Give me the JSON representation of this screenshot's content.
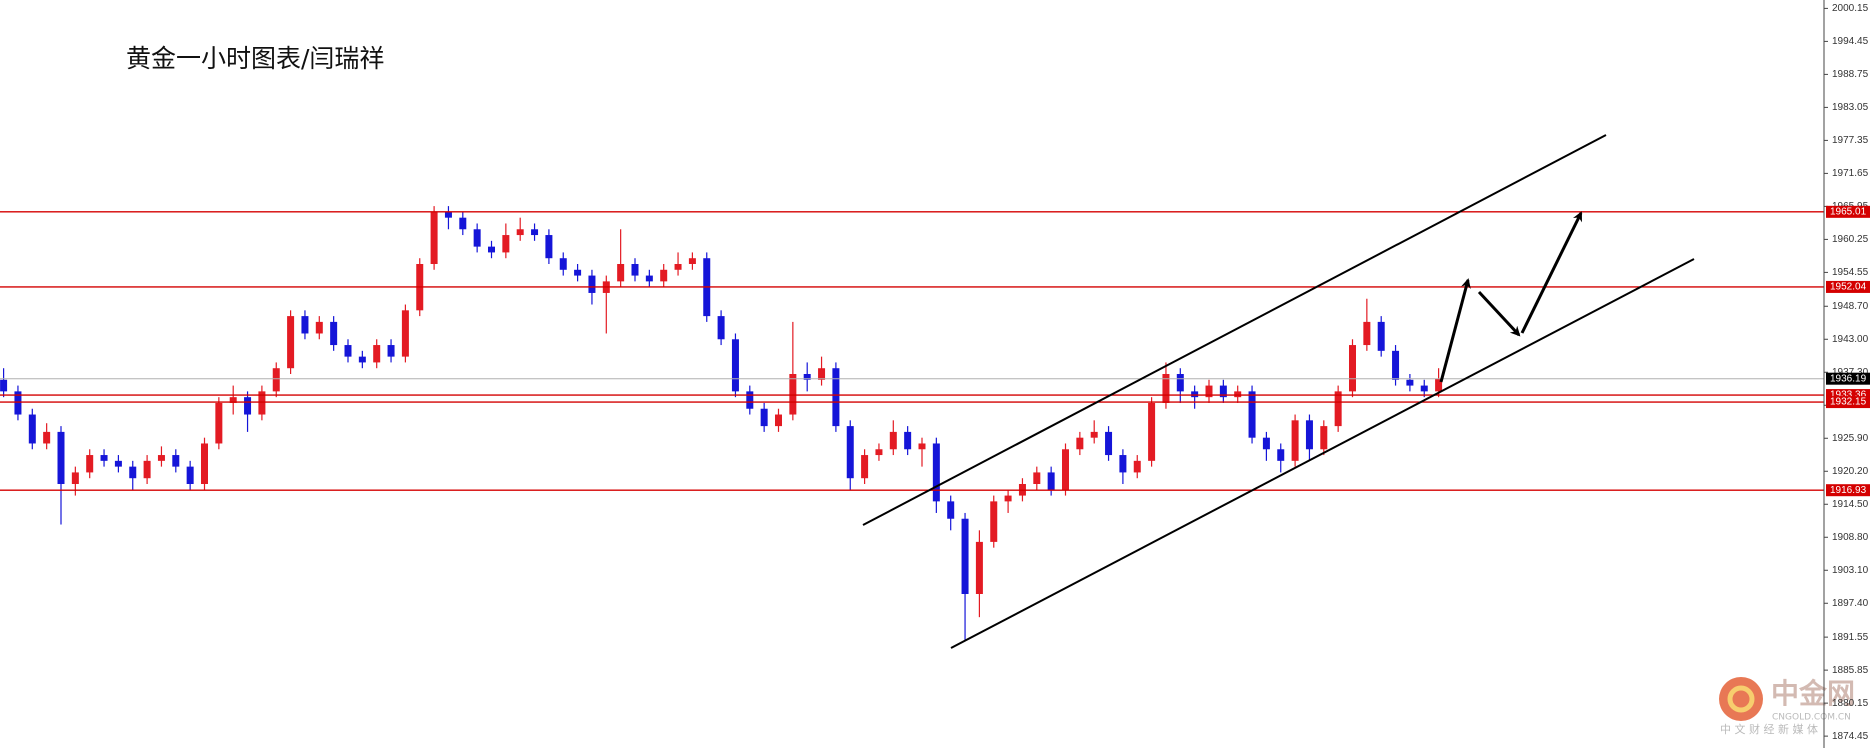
{
  "chart_data": {
    "type": "candlestick",
    "title": "黄金一小时图表/闫瑞祥",
    "up_color": "#e31b23",
    "down_color": "#1515d8",
    "level_color": "#d40000",
    "last_color": "#000000",
    "ylim": [
      1872.4,
      2001.6
    ],
    "yticks": [
      2000.15,
      1994.45,
      1988.75,
      1983.05,
      1977.35,
      1971.65,
      1965.95,
      1960.25,
      1954.55,
      {
        "value": 1948.7,
        "label": "1948.70"
      },
      {
        "value": 1943,
        "label": "1943.00"
      },
      {
        "value": 1937.3,
        "label": "1937.30"
      },
      {
        "value": 1931.6,
        "label": "1931.60"
      },
      {
        "value": 1925.9,
        "label": "1925.90"
      },
      {
        "value": 1920.2,
        "label": "1920.20"
      },
      {
        "value": 1914.5,
        "label": "1914.50"
      },
      {
        "value": 1908.8,
        "label": "1908.80"
      },
      {
        "value": 1903.1,
        "label": "1903.10"
      },
      {
        "value": 1897.4,
        "label": "1897.40"
      },
      1891.55,
      1885.85,
      1880.15,
      1874.45
    ],
    "levels": [
      1965.01,
      1952.04,
      1933.36,
      1932.15,
      1916.93
    ],
    "last_price": 1936.19,
    "ohlc": [
      [
        1936,
        1938,
        1933,
        1934
      ],
      [
        1934,
        1935,
        1929,
        1930
      ],
      [
        1930,
        1931,
        1924,
        1925
      ],
      [
        1925,
        1928.5,
        1924,
        1927
      ],
      [
        1927,
        1928,
        1911,
        1918
      ],
      [
        1918,
        1921,
        1916,
        1920
      ],
      [
        1920,
        1924,
        1919,
        1923
      ],
      [
        1923,
        1924,
        1921,
        1922
      ],
      [
        1922,
        1923,
        1920,
        1921
      ],
      [
        1921,
        1922,
        1917,
        1919
      ],
      [
        1919,
        1923,
        1918,
        1922
      ],
      [
        1922,
        1924.5,
        1921,
        1923
      ],
      [
        1923,
        1924,
        1920,
        1921
      ],
      [
        1921,
        1922,
        1917,
        1918
      ],
      [
        1918,
        1926,
        1917,
        1925
      ],
      [
        1925,
        1933,
        1924,
        1932
      ],
      [
        1932,
        1935,
        1930,
        1933
      ],
      [
        1933,
        1934,
        1927,
        1930
      ],
      [
        1930,
        1935,
        1929,
        1934
      ],
      [
        1934,
        1939,
        1933,
        1938
      ],
      [
        1938,
        1948,
        1937,
        1947
      ],
      [
        1947,
        1948,
        1943,
        1944
      ],
      [
        1944,
        1947,
        1943,
        1946
      ],
      [
        1946,
        1947,
        1941,
        1942
      ],
      [
        1942,
        1943,
        1939,
        1940
      ],
      [
        1940,
        1941,
        1938,
        1939
      ],
      [
        1939,
        1943,
        1938,
        1942
      ],
      [
        1942,
        1943,
        1939,
        1940
      ],
      [
        1940,
        1949,
        1939,
        1948
      ],
      [
        1948,
        1957,
        1947,
        1956
      ],
      [
        1956,
        1966,
        1955,
        1965
      ],
      [
        1965,
        1966,
        1962,
        1964
      ],
      [
        1964,
        1965,
        1961,
        1962
      ],
      [
        1962,
        1963,
        1958,
        1959
      ],
      [
        1959,
        1960,
        1957,
        1958
      ],
      [
        1958,
        1963,
        1957,
        1961
      ],
      [
        1961,
        1964,
        1960,
        1962
      ],
      [
        1962,
        1963,
        1960,
        1961
      ],
      [
        1961,
        1962,
        1956,
        1957
      ],
      [
        1957,
        1958,
        1954,
        1955
      ],
      [
        1955,
        1956,
        1953,
        1954
      ],
      [
        1954,
        1955,
        1949,
        1951
      ],
      [
        1951,
        1954,
        1944,
        1953
      ],
      [
        1953,
        1962,
        1952,
        1956
      ],
      [
        1956,
        1957,
        1953,
        1954
      ],
      [
        1954,
        1955,
        1952,
        1953
      ],
      [
        1953,
        1956,
        1952,
        1955
      ],
      [
        1955,
        1958,
        1954,
        1956
      ],
      [
        1956,
        1958,
        1955,
        1957
      ],
      [
        1957,
        1958,
        1946,
        1947
      ],
      [
        1947,
        1948,
        1942,
        1943
      ],
      [
        1943,
        1944,
        1933,
        1934
      ],
      [
        1934,
        1935,
        1930,
        1931
      ],
      [
        1931,
        1932,
        1927,
        1928
      ],
      [
        1928,
        1931,
        1927,
        1930
      ],
      [
        1930,
        1946,
        1929,
        1937
      ],
      [
        1937,
        1939,
        1934,
        1936
      ],
      [
        1936,
        1940,
        1935,
        1938
      ],
      [
        1938,
        1939,
        1927,
        1928
      ],
      [
        1928,
        1929,
        1917,
        1919
      ],
      [
        1919,
        1924,
        1918,
        1923
      ],
      [
        1923,
        1925,
        1922,
        1924
      ],
      [
        1924,
        1929,
        1923,
        1927
      ],
      [
        1927,
        1928,
        1923,
        1924
      ],
      [
        1924,
        1926,
        1921,
        1925
      ],
      [
        1925,
        1926,
        1913,
        1915
      ],
      [
        1915,
        1916,
        1910,
        1912
      ],
      [
        1912,
        1913,
        1891,
        1899
      ],
      [
        1899,
        1910,
        1895,
        1908
      ],
      [
        1908,
        1916,
        1907,
        1915
      ],
      [
        1915,
        1917,
        1913,
        1916
      ],
      [
        1916,
        1919,
        1915,
        1918
      ],
      [
        1918,
        1921,
        1917,
        1920
      ],
      [
        1920,
        1921,
        1916,
        1917
      ],
      [
        1917,
        1925,
        1916,
        1924
      ],
      [
        1924,
        1927,
        1923,
        1926
      ],
      [
        1926,
        1929,
        1925,
        1927
      ],
      [
        1927,
        1928,
        1922,
        1923
      ],
      [
        1923,
        1924,
        1918,
        1920
      ],
      [
        1920,
        1923,
        1919,
        1922
      ],
      [
        1922,
        1933,
        1921,
        1932
      ],
      [
        1932,
        1939,
        1931,
        1937
      ],
      [
        1937,
        1938,
        1932,
        1934
      ],
      [
        1934,
        1935,
        1931,
        1933
      ],
      [
        1933,
        1936,
        1932,
        1935
      ],
      [
        1935,
        1936,
        1932,
        1933
      ],
      [
        1933,
        1935,
        1932,
        1934
      ],
      [
        1934,
        1935,
        1925,
        1926
      ],
      [
        1926,
        1927,
        1922,
        1924
      ],
      [
        1924,
        1925,
        1920,
        1922
      ],
      [
        1922,
        1930,
        1921,
        1929
      ],
      [
        1929,
        1930,
        1922,
        1924
      ],
      [
        1924,
        1929,
        1923,
        1928
      ],
      [
        1928,
        1935,
        1927,
        1934
      ],
      [
        1934,
        1943,
        1933,
        1942
      ],
      [
        1942,
        1950,
        1941,
        1946
      ],
      [
        1946,
        1947,
        1940,
        1941
      ],
      [
        1941,
        1942,
        1935,
        1936
      ],
      [
        1936,
        1937,
        1934,
        1935
      ],
      [
        1935,
        1936,
        1933,
        1934
      ],
      [
        1934,
        1938,
        1933,
        1936.19
      ]
    ]
  },
  "watermark": {
    "brand": "中金网",
    "domain": "CNGOLD.COM.CN",
    "slogan": "中 文 财 经 新 媒 体"
  }
}
